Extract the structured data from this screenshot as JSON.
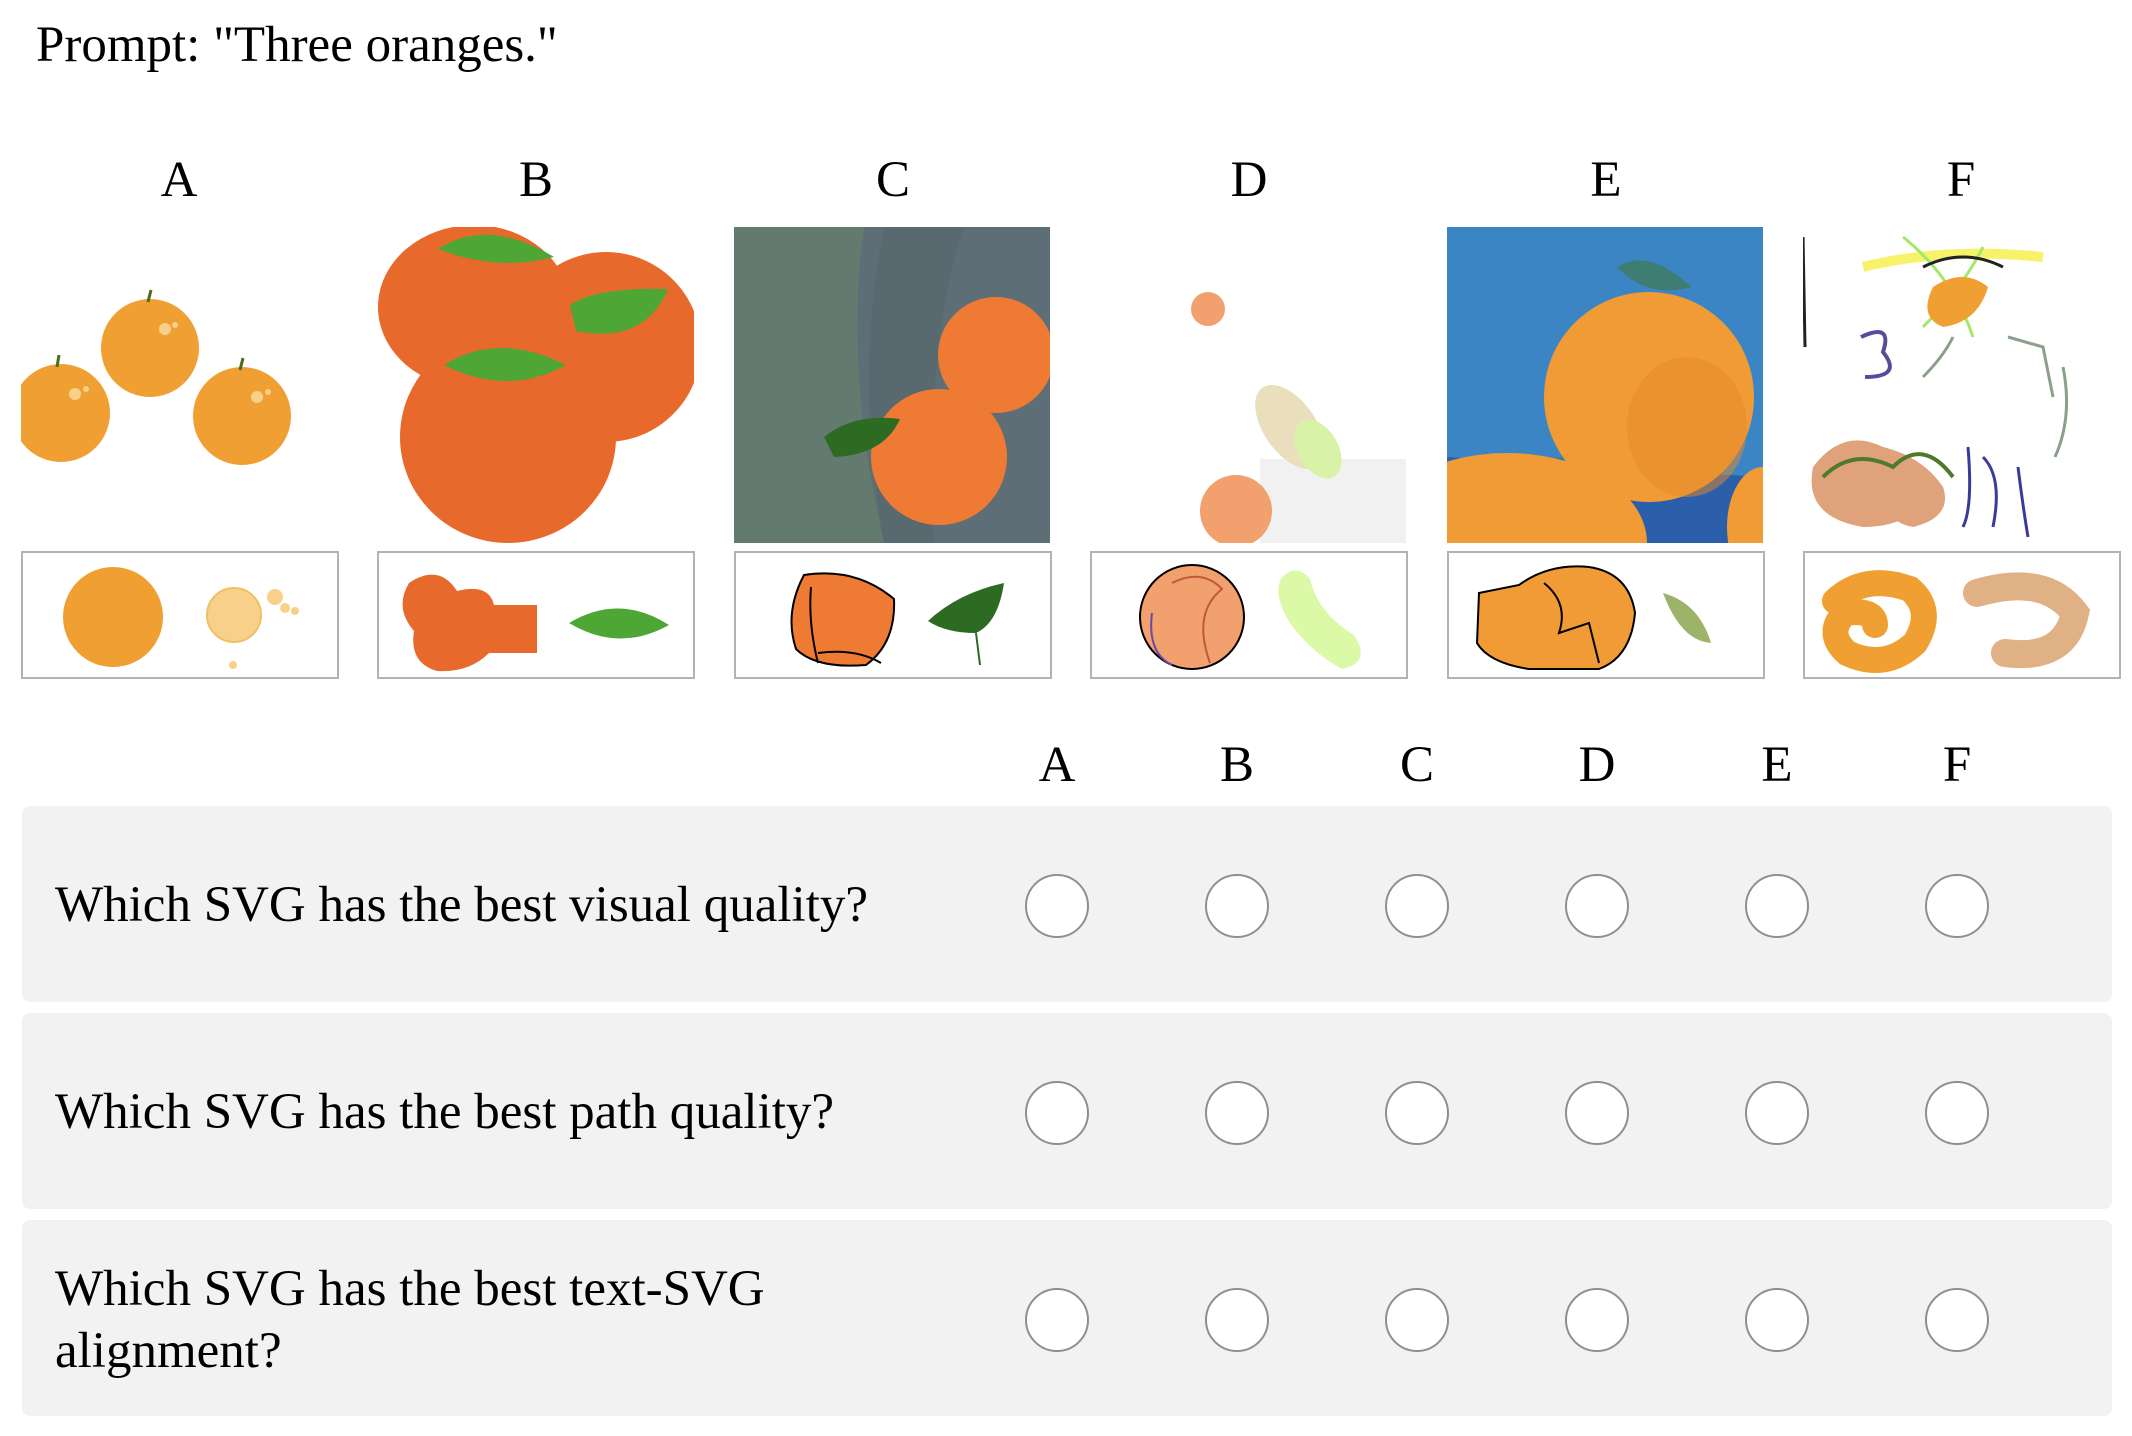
{
  "prompt": "Prompt: \"Three oranges.\"",
  "candidates": [
    {
      "label": "A"
    },
    {
      "label": "B"
    },
    {
      "label": "C"
    },
    {
      "label": "D"
    },
    {
      "label": "E"
    },
    {
      "label": "F"
    }
  ],
  "questions": [
    {
      "text": "Which SVG has the best visual quality?"
    },
    {
      "text": "Which SVG has the best path quality?"
    },
    {
      "text": "Which SVG has the best text-SVG alignment?"
    }
  ],
  "colors": {
    "orange_light": "#f0a033",
    "orange_dark": "#e8692c",
    "leaf_green": "#4ea634",
    "panel_bg": "#f2f2f2",
    "radio_border": "#8f8f8f"
  }
}
